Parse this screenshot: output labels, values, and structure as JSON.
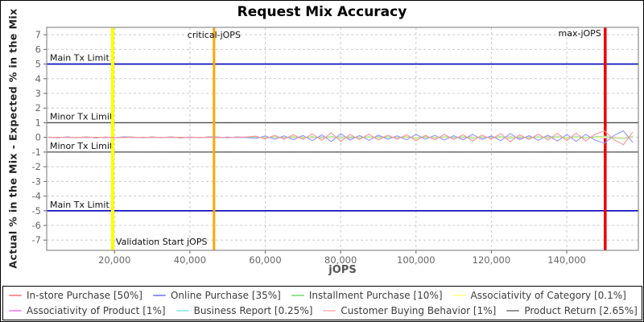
{
  "title": "Request Mix Accuracy",
  "chart_data": {
    "type": "line",
    "title": "Request Mix Accuracy",
    "grid": true,
    "legend_position": "bottom",
    "x_axis": {
      "label": "jOPS",
      "min": 2000,
      "max": 159000,
      "ticks": [
        {
          "v": 20000,
          "label": "20,000"
        },
        {
          "v": 40000,
          "label": "40,000"
        },
        {
          "v": 60000,
          "label": "60,000"
        },
        {
          "v": 80000,
          "label": "80,000"
        },
        {
          "v": 100000,
          "label": "100,000"
        },
        {
          "v": 120000,
          "label": "120,000"
        },
        {
          "v": 140000,
          "label": "140,000"
        }
      ]
    },
    "y_axis": {
      "label": "Actual % in the Mix - Expected % in the Mix",
      "min": -7.7,
      "max": 7.5,
      "ticks": [
        {
          "v": 7,
          "label": "7"
        },
        {
          "v": 6,
          "label": "6"
        },
        {
          "v": 5,
          "label": "5"
        },
        {
          "v": 4,
          "label": "4"
        },
        {
          "v": 3,
          "label": "3"
        },
        {
          "v": 2,
          "label": "2"
        },
        {
          "v": 1,
          "label": "1"
        },
        {
          "v": 0,
          "label": "0"
        },
        {
          "v": -1,
          "label": "-1"
        },
        {
          "v": -2,
          "label": "-2"
        },
        {
          "v": -3,
          "label": "-3"
        },
        {
          "v": -4,
          "label": "-4"
        },
        {
          "v": -5,
          "label": "-5"
        },
        {
          "v": -6,
          "label": "-6"
        },
        {
          "v": -7,
          "label": "-7"
        }
      ]
    },
    "h_markers": [
      {
        "label": "Main Tx Limit",
        "value": 5,
        "color": "#0000bb",
        "width": 1.6
      },
      {
        "label": "Minor Tx Limit",
        "value": 1,
        "color": "#4d4d4d",
        "width": 1.3
      },
      {
        "label": "Minor Tx Limit",
        "value": -1,
        "color": "#4d4d4d",
        "width": 1.3
      },
      {
        "label": "Main Tx Limit",
        "value": -5,
        "color": "#0000bb",
        "width": 1.6
      }
    ],
    "v_markers": [
      {
        "label": "Validation Start jOPS",
        "value": 19500,
        "color": "#ffff00",
        "width": 4,
        "anchor": "start",
        "label_y": 303
      },
      {
        "label": "critical-jOPS",
        "value": 46400,
        "color": "#ffa500",
        "width": 3,
        "anchor": "middle",
        "label_y": 46
      },
      {
        "label": "max-jOPS",
        "value": 150200,
        "color": "#ee0000",
        "width": 3.5,
        "anchor": "end",
        "label_y": 44
      }
    ],
    "x": [
      2500,
      5000,
      7500,
      10000,
      12500,
      15000,
      17500,
      20000,
      22500,
      25000,
      27500,
      30000,
      32500,
      35000,
      37500,
      40000,
      42500,
      45000,
      47500,
      50000,
      52500,
      55000,
      57500,
      60000,
      62500,
      65000,
      67500,
      70000,
      72500,
      75000,
      77500,
      80000,
      82500,
      85000,
      87500,
      90000,
      92500,
      95000,
      97500,
      100000,
      102500,
      105000,
      107500,
      110000,
      112500,
      115000,
      117500,
      120000,
      122500,
      125000,
      127500,
      130000,
      132500,
      135000,
      137500,
      140000,
      142500,
      145000,
      147500,
      150000,
      152500,
      155000,
      157500
    ],
    "series": [
      {
        "name": "In-store Purchase [50%]",
        "color": "#ff9494",
        "values": [
          0.0,
          0.01,
          -0.01,
          0.0,
          0.02,
          -0.01,
          0.01,
          0.0,
          -0.02,
          0.01,
          0.0,
          0.01,
          -0.01,
          0.02,
          0.0,
          -0.01,
          0.01,
          -0.01,
          0.02,
          -0.02,
          0.01,
          0.03,
          0.08,
          -0.1,
          0.14,
          -0.12,
          0.18,
          -0.15,
          0.25,
          -0.2,
          0.32,
          -0.28,
          0.2,
          -0.15,
          0.22,
          -0.18,
          0.15,
          -0.12,
          0.18,
          -0.22,
          0.14,
          -0.16,
          0.2,
          -0.14,
          0.18,
          -0.24,
          0.16,
          -0.12,
          0.26,
          -0.3,
          0.18,
          -0.14,
          0.22,
          -0.18,
          0.28,
          -0.22,
          0.3,
          -0.24,
          0.2,
          0.45,
          -0.15,
          -0.5,
          0.38
        ]
      },
      {
        "name": "Online Purchase [35%]",
        "color": "#9494ff",
        "values": [
          0.0,
          -0.01,
          0.01,
          0.0,
          -0.02,
          0.01,
          -0.01,
          0.0,
          0.02,
          -0.01,
          0.0,
          -0.01,
          0.01,
          -0.02,
          0.0,
          0.01,
          -0.01,
          0.01,
          -0.02,
          0.02,
          -0.01,
          -0.02,
          -0.07,
          0.09,
          -0.12,
          0.11,
          -0.16,
          0.13,
          -0.22,
          0.18,
          -0.28,
          0.25,
          -0.18,
          0.13,
          -0.2,
          0.16,
          -0.13,
          0.11,
          -0.16,
          0.2,
          -0.12,
          0.14,
          -0.18,
          0.12,
          -0.16,
          0.21,
          -0.14,
          0.11,
          -0.23,
          0.27,
          -0.16,
          0.12,
          -0.2,
          0.16,
          -0.25,
          0.2,
          -0.27,
          0.21,
          -0.18,
          -0.4,
          0.13,
          0.45,
          -0.34
        ]
      },
      {
        "name": "Installment Purchase [10%]",
        "color": "#94e394",
        "values": [
          0.0,
          0.0,
          0.01,
          -0.01,
          0.0,
          0.01,
          0.0,
          -0.01,
          0.01,
          0.0,
          -0.01,
          0.0,
          0.01,
          0.0,
          -0.01,
          0.01,
          0.0,
          0.0,
          -0.01,
          0.01,
          0.0,
          -0.01,
          0.02,
          -0.03,
          0.04,
          -0.03,
          0.05,
          -0.04,
          0.06,
          -0.05,
          0.07,
          -0.06,
          0.05,
          -0.04,
          0.05,
          -0.04,
          0.03,
          -0.03,
          0.04,
          -0.05,
          0.03,
          -0.04,
          0.05,
          -0.03,
          0.04,
          -0.06,
          0.04,
          -0.03,
          0.06,
          -0.07,
          0.04,
          -0.03,
          0.05,
          -0.04,
          0.06,
          -0.05,
          0.06,
          -0.05,
          0.04,
          0.09,
          -0.04,
          -0.1,
          0.08
        ]
      },
      {
        "name": "Associativity of Category [0.1%]",
        "color": "#ffff9e",
        "values": [
          0,
          0.01,
          -0.01,
          0.01,
          -0.01,
          0.02,
          0,
          -0.02,
          0.01,
          0,
          0.01,
          -0.01,
          0.01,
          -0.01,
          0.02,
          0,
          -0.02,
          0.01,
          0,
          0.01,
          -0.01,
          0.01,
          -0.01,
          0.02,
          0,
          -0.02,
          0.01,
          0,
          0.01,
          -0.01,
          0.01,
          -0.01,
          0.02,
          0,
          -0.02,
          0.01,
          0,
          0.01,
          -0.01,
          0.01,
          -0.01,
          0.02,
          0,
          -0.02,
          0.01,
          0,
          0.01,
          -0.01,
          0.01,
          -0.01,
          0.02,
          0,
          -0.02,
          0.01,
          0,
          0.01,
          -0.01,
          0.01,
          -0.01,
          0.02,
          0,
          -0.02,
          0.01
        ]
      },
      {
        "name": "Associativity of Product [1%]",
        "color": "#f598f5",
        "values": [
          0.01,
          -0.02,
          0.02,
          -0.01,
          0.01,
          -0.03,
          0.02,
          0,
          -0.01,
          0.01,
          -0.02,
          0.02,
          -0.01,
          0.01,
          -0.03,
          0.02,
          0,
          -0.01,
          0.01,
          -0.02,
          0.02,
          -0.01,
          0.01,
          -0.03,
          0.02,
          0,
          -0.01,
          0.01,
          -0.02,
          0.02,
          -0.01,
          0.01,
          -0.03,
          0.02,
          0,
          -0.01,
          0.01,
          -0.02,
          0.02,
          -0.01,
          0.01,
          -0.03,
          0.02,
          0,
          -0.01,
          0.01,
          -0.02,
          0.02,
          -0.01,
          0.01,
          -0.03,
          0.02,
          0,
          -0.01,
          0.01,
          -0.02,
          0.02,
          -0.01,
          0.01,
          -0.03,
          0.02,
          0,
          -0.01
        ]
      },
      {
        "name": "Business Report [0.25%]",
        "color": "#9ef2ee",
        "values": [
          0,
          -0.01,
          0.01,
          0,
          0.02,
          -0.02,
          0.01,
          -0.01,
          0,
          0,
          -0.01,
          0.01,
          0,
          0.02,
          -0.02,
          0.01,
          -0.01,
          0,
          0,
          -0.01,
          0.01,
          0,
          0.02,
          -0.02,
          0.01,
          -0.01,
          0,
          0,
          -0.01,
          0.01,
          0,
          0.02,
          -0.02,
          0.01,
          -0.01,
          0,
          0,
          -0.01,
          0.01,
          0,
          0.02,
          -0.02,
          0.01,
          -0.01,
          0,
          0,
          -0.01,
          0.01,
          0,
          0.02,
          -0.02,
          0.01,
          -0.01,
          0,
          0,
          -0.01,
          0.01,
          0,
          0.02,
          -0.02,
          0.01,
          -0.01,
          0
        ]
      },
      {
        "name": "Customer Buying Behavior [1%]",
        "color": "#ffc4c4",
        "values": [
          -0.01,
          0.02,
          -0.02,
          0.01,
          0,
          0.02,
          -0.03,
          0.01,
          -0.01,
          -0.01,
          0.02,
          -0.02,
          0.01,
          0,
          0.02,
          -0.03,
          0.01,
          -0.01,
          -0.01,
          0.02,
          -0.02,
          0.01,
          0,
          0.02,
          -0.03,
          0.01,
          -0.01,
          -0.01,
          0.02,
          -0.02,
          0.01,
          0,
          0.02,
          -0.03,
          0.01,
          -0.01,
          -0.01,
          0.02,
          -0.02,
          0.01,
          0,
          0.02,
          -0.03,
          0.01,
          -0.01,
          -0.01,
          0.02,
          -0.02,
          0.01,
          0,
          0.02,
          -0.03,
          0.01,
          -0.01,
          -0.01,
          0.02,
          -0.02,
          0.01,
          0,
          0.02,
          -0.03,
          0.01,
          -0.01
        ]
      },
      {
        "name": "Product Return [2.65%]",
        "color": "#949494",
        "values": [
          0.02,
          -0.03,
          0.03,
          -0.02,
          0.04,
          -0.04,
          0.02,
          -0.02,
          0.03,
          0.02,
          -0.03,
          0.03,
          -0.02,
          0.04,
          -0.04,
          0.02,
          -0.02,
          0.03,
          0.02,
          -0.03,
          0.03,
          -0.02,
          0.04,
          -0.04,
          0.02,
          -0.02,
          0.03,
          0.02,
          -0.03,
          0.03,
          -0.02,
          0.04,
          -0.04,
          0.02,
          -0.02,
          0.03,
          0.02,
          -0.03,
          0.03,
          -0.02,
          0.04,
          -0.04,
          0.02,
          -0.02,
          0.03,
          0.02,
          -0.03,
          0.03,
          -0.02,
          0.04,
          -0.04,
          0.02,
          -0.02,
          0.03,
          0.02,
          -0.03,
          0.03,
          -0.02,
          0.04,
          -0.04,
          0.02,
          -0.02,
          0.03
        ]
      }
    ],
    "style": {
      "grid_color": "#cccccc",
      "border_color": "#8c8c8c",
      "tick_color": "#666666",
      "marker_label_color": "#111111"
    }
  }
}
